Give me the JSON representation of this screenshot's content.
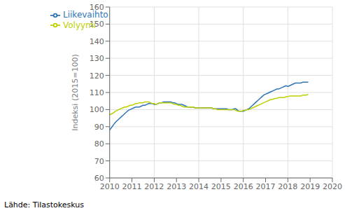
{
  "chart_data": {
    "type": "line",
    "ylabel": "Indeksi (2015=100)",
    "source": "Lähde: Tilastokeskus",
    "x": [
      2010,
      2010.083333,
      2010.166667,
      2010.25,
      2010.333333,
      2010.416667,
      2010.5,
      2010.583333,
      2010.666667,
      2010.75,
      2010.833333,
      2010.916667,
      2011,
      2011.083333,
      2011.166667,
      2011.25,
      2011.333333,
      2011.416667,
      2011.5,
      2011.583333,
      2011.666667,
      2011.75,
      2011.833333,
      2011.916667,
      2012,
      2012.083333,
      2012.166667,
      2012.25,
      2012.333333,
      2012.416667,
      2012.5,
      2012.583333,
      2012.666667,
      2012.75,
      2012.833333,
      2012.916667,
      2013,
      2013.083333,
      2013.166667,
      2013.25,
      2013.333333,
      2013.416667,
      2013.5,
      2013.583333,
      2013.666667,
      2013.75,
      2013.833333,
      2013.916667,
      2014,
      2014.083333,
      2014.166667,
      2014.25,
      2014.333333,
      2014.416667,
      2014.5,
      2014.583333,
      2014.666667,
      2014.75,
      2014.833333,
      2014.916667,
      2015,
      2015.083333,
      2015.166667,
      2015.25,
      2015.333333,
      2015.416667,
      2015.5,
      2015.583333,
      2015.666667,
      2015.75,
      2015.833333,
      2015.916667,
      2016,
      2016.083333,
      2016.166667,
      2016.25,
      2016.333333,
      2016.416667,
      2016.5,
      2016.583333,
      2016.666667,
      2016.75,
      2016.833333,
      2016.916667,
      2017,
      2017.083333,
      2017.166667,
      2017.25,
      2017.333333,
      2017.416667,
      2017.5,
      2017.583333,
      2017.666667,
      2017.75,
      2017.833333,
      2017.916667,
      2018,
      2018.083333,
      2018.166667,
      2018.25,
      2018.333333,
      2018.416667,
      2018.5,
      2018.583333,
      2018.666667,
      2018.75,
      2018.833333,
      2018.916667
    ],
    "series": [
      {
        "name": "Liikevaihto",
        "color": "#2e75b6",
        "values": [
          88.0,
          89.5,
          91.0,
          92.5,
          93.5,
          94.5,
          95.5,
          96.5,
          97.5,
          98.5,
          99.5,
          100.0,
          100.5,
          101.0,
          101.5,
          101.5,
          101.5,
          102.0,
          102.5,
          102.5,
          103.0,
          103.5,
          103.5,
          103.5,
          103.0,
          103.0,
          103.5,
          104.0,
          104.0,
          104.5,
          104.5,
          104.5,
          104.5,
          104.5,
          104.0,
          104.0,
          103.5,
          103.0,
          103.0,
          103.0,
          102.5,
          102.0,
          101.5,
          101.5,
          101.5,
          101.5,
          101.0,
          101.0,
          101.0,
          101.0,
          101.0,
          101.0,
          101.0,
          101.0,
          101.0,
          101.0,
          100.5,
          100.5,
          100.5,
          100.5,
          100.5,
          100.5,
          100.5,
          100.5,
          100.0,
          100.0,
          100.0,
          100.5,
          100.5,
          99.5,
          99.0,
          99.0,
          99.0,
          99.5,
          100.0,
          100.5,
          101.5,
          102.5,
          103.5,
          104.5,
          105.5,
          106.5,
          107.5,
          108.5,
          109.0,
          109.5,
          110.0,
          110.5,
          111.0,
          111.5,
          112.0,
          112.0,
          112.5,
          113.0,
          113.5,
          114.0,
          113.5,
          114.0,
          114.5,
          115.0,
          115.5,
          115.5,
          115.5,
          115.5,
          116.0,
          116.0,
          116.0,
          116.0
        ]
      },
      {
        "name": "Volyymi",
        "color": "#bdd000",
        "values": [
          97.0,
          97.5,
          98.0,
          99.0,
          99.5,
          100.0,
          100.5,
          101.0,
          101.5,
          101.5,
          102.0,
          102.5,
          102.5,
          103.0,
          103.5,
          103.5,
          104.0,
          104.0,
          104.0,
          104.5,
          104.5,
          104.5,
          104.0,
          103.5,
          103.5,
          103.0,
          103.5,
          104.0,
          104.0,
          104.0,
          104.0,
          104.0,
          104.0,
          104.0,
          103.5,
          103.0,
          103.0,
          102.5,
          102.5,
          102.0,
          101.5,
          101.5,
          101.5,
          101.5,
          101.5,
          101.5,
          101.0,
          101.0,
          101.0,
          101.0,
          101.0,
          101.0,
          101.0,
          101.0,
          101.0,
          101.0,
          100.5,
          100.5,
          100.0,
          100.0,
          100.0,
          100.0,
          100.0,
          100.0,
          100.0,
          100.0,
          100.0,
          100.0,
          99.5,
          99.0,
          99.0,
          99.0,
          99.5,
          99.5,
          100.0,
          100.0,
          100.5,
          101.0,
          101.5,
          102.0,
          102.5,
          103.0,
          103.5,
          104.0,
          104.5,
          105.0,
          105.5,
          106.0,
          106.0,
          106.5,
          106.5,
          107.0,
          107.0,
          107.0,
          107.0,
          107.5,
          107.5,
          108.0,
          108.0,
          108.0,
          108.0,
          108.0,
          108.0,
          108.0,
          108.5,
          108.5,
          108.5,
          109.0
        ]
      }
    ],
    "xlim": [
      2010,
      2020
    ],
    "ylim": [
      60,
      160
    ],
    "xticks": [
      2010,
      2011,
      2012,
      2013,
      2014,
      2015,
      2016,
      2017,
      2018,
      2019,
      2020
    ],
    "yticks": [
      60,
      70,
      80,
      90,
      100,
      110,
      120,
      130,
      140,
      150,
      160
    ],
    "grid": true,
    "legend": "upper left"
  }
}
